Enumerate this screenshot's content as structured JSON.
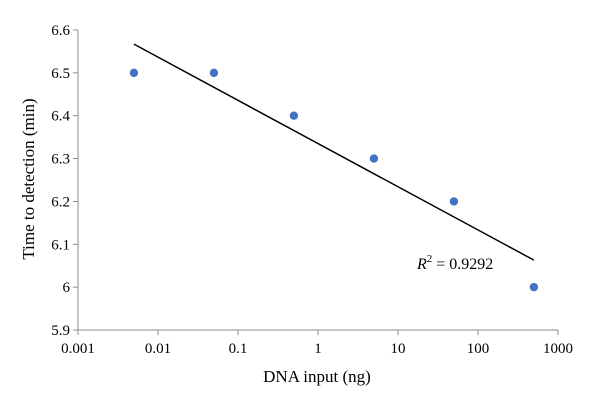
{
  "chart_data": {
    "type": "scatter",
    "title": "",
    "xlabel": "DNA input (ng)",
    "ylabel": "Time to detection (min)",
    "x_scale": "log",
    "xlim": [
      0.001,
      1000
    ],
    "ylim": [
      5.9,
      6.6
    ],
    "x_ticks": [
      "0.001",
      "0.01",
      "0.1",
      "1",
      "10",
      "100",
      "1000"
    ],
    "y_ticks": [
      "5.9",
      "6",
      "6.1",
      "6.2",
      "6.3",
      "6.4",
      "6.5",
      "6.6"
    ],
    "grid": false,
    "series": [
      {
        "x": [
          0.005,
          0.05,
          0.5,
          5,
          50,
          500
        ],
        "y": [
          6.5,
          6.5,
          6.4,
          6.3,
          6.2,
          6.0
        ],
        "color": "#4472C4"
      }
    ],
    "trendline": {
      "type": "log-linear",
      "x": [
        0.005,
        500
      ],
      "y": [
        6.567,
        6.063
      ],
      "color": "#000000"
    },
    "annotation": {
      "r_symbol": "R",
      "superscript": "2",
      "value": " = 0.9292"
    }
  }
}
